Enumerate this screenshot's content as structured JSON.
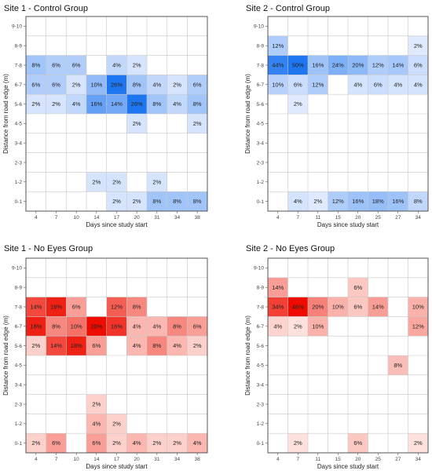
{
  "chart_data": [
    {
      "type": "heatmap",
      "title": "Site 1 - Control Group",
      "xlabel": "Days since study start",
      "ylabel": "Distance from road edge (m)",
      "x": [
        "4",
        "7",
        "10",
        "14",
        "17",
        "20",
        "31",
        "34",
        "38"
      ],
      "y": [
        "0-1",
        "1-2",
        "2-3",
        "3-4",
        "4-5",
        "5-6",
        "6-7",
        "7-8",
        "8-9",
        "9-10"
      ],
      "color_scale": "blue",
      "cells": [
        {
          "x": "4",
          "y": "7-8",
          "value": 8
        },
        {
          "x": "7",
          "y": "7-8",
          "value": 6
        },
        {
          "x": "10",
          "y": "7-8",
          "value": 6
        },
        {
          "x": "17",
          "y": "7-8",
          "value": 4
        },
        {
          "x": "20",
          "y": "7-8",
          "value": 2
        },
        {
          "x": "4",
          "y": "6-7",
          "value": 6
        },
        {
          "x": "7",
          "y": "6-7",
          "value": 6
        },
        {
          "x": "10",
          "y": "6-7",
          "value": 2
        },
        {
          "x": "14",
          "y": "6-7",
          "value": 10
        },
        {
          "x": "17",
          "y": "6-7",
          "value": 26
        },
        {
          "x": "20",
          "y": "6-7",
          "value": 8
        },
        {
          "x": "31",
          "y": "6-7",
          "value": 4
        },
        {
          "x": "34",
          "y": "6-7",
          "value": 2
        },
        {
          "x": "38",
          "y": "6-7",
          "value": 6
        },
        {
          "x": "4",
          "y": "5-6",
          "value": 2
        },
        {
          "x": "7",
          "y": "5-6",
          "value": 2
        },
        {
          "x": "10",
          "y": "5-6",
          "value": 4
        },
        {
          "x": "14",
          "y": "5-6",
          "value": 16
        },
        {
          "x": "17",
          "y": "5-6",
          "value": 14
        },
        {
          "x": "20",
          "y": "5-6",
          "value": 26
        },
        {
          "x": "31",
          "y": "5-6",
          "value": 8
        },
        {
          "x": "34",
          "y": "5-6",
          "value": 4
        },
        {
          "x": "38",
          "y": "5-6",
          "value": 8
        },
        {
          "x": "20",
          "y": "4-5",
          "value": 2
        },
        {
          "x": "38",
          "y": "4-5",
          "value": 2
        },
        {
          "x": "14",
          "y": "1-2",
          "value": 2
        },
        {
          "x": "17",
          "y": "1-2",
          "value": 2
        },
        {
          "x": "31",
          "y": "1-2",
          "value": 2
        },
        {
          "x": "17",
          "y": "0-1",
          "value": 2
        },
        {
          "x": "20",
          "y": "0-1",
          "value": 2
        },
        {
          "x": "31",
          "y": "0-1",
          "value": 8
        },
        {
          "x": "34",
          "y": "0-1",
          "value": 8
        },
        {
          "x": "38",
          "y": "0-1",
          "value": 8
        }
      ]
    },
    {
      "type": "heatmap",
      "title": "Site 2 - Control Group",
      "xlabel": "Days since study start",
      "ylabel": "Distance from road edge (m)",
      "x": [
        "4",
        "7",
        "11",
        "15",
        "20",
        "25",
        "27",
        "34"
      ],
      "y": [
        "0-1",
        "1-2",
        "2-3",
        "3-4",
        "4-5",
        "5-6",
        "6-7",
        "7-8",
        "8-9",
        "9-10"
      ],
      "color_scale": "blue",
      "cells": [
        {
          "x": "4",
          "y": "8-9",
          "value": 12
        },
        {
          "x": "34",
          "y": "8-9",
          "value": 2
        },
        {
          "x": "4",
          "y": "7-8",
          "value": 44
        },
        {
          "x": "7",
          "y": "7-8",
          "value": 50
        },
        {
          "x": "11",
          "y": "7-8",
          "value": 16
        },
        {
          "x": "15",
          "y": "7-8",
          "value": 24
        },
        {
          "x": "20",
          "y": "7-8",
          "value": 20
        },
        {
          "x": "25",
          "y": "7-8",
          "value": 12
        },
        {
          "x": "27",
          "y": "7-8",
          "value": 14
        },
        {
          "x": "34",
          "y": "7-8",
          "value": 6
        },
        {
          "x": "4",
          "y": "6-7",
          "value": 10
        },
        {
          "x": "7",
          "y": "6-7",
          "value": 6
        },
        {
          "x": "11",
          "y": "6-7",
          "value": 12
        },
        {
          "x": "20",
          "y": "6-7",
          "value": 4
        },
        {
          "x": "25",
          "y": "6-7",
          "value": 6
        },
        {
          "x": "27",
          "y": "6-7",
          "value": 4
        },
        {
          "x": "34",
          "y": "6-7",
          "value": 4
        },
        {
          "x": "7",
          "y": "5-6",
          "value": 2
        },
        {
          "x": "7",
          "y": "0-1",
          "value": 4
        },
        {
          "x": "11",
          "y": "0-1",
          "value": 2
        },
        {
          "x": "15",
          "y": "0-1",
          "value": 12
        },
        {
          "x": "20",
          "y": "0-1",
          "value": 16
        },
        {
          "x": "25",
          "y": "0-1",
          "value": 18
        },
        {
          "x": "27",
          "y": "0-1",
          "value": 16
        },
        {
          "x": "34",
          "y": "0-1",
          "value": 8
        }
      ]
    },
    {
      "type": "heatmap",
      "title": "Site 1 - No Eyes Group",
      "xlabel": "Days since study start",
      "ylabel": "Distance from road edge (m)",
      "x": [
        "4",
        "7",
        "10",
        "14",
        "17",
        "20",
        "31",
        "34",
        "38"
      ],
      "y": [
        "0-1",
        "1-2",
        "2-3",
        "3-4",
        "4-5",
        "5-6",
        "6-7",
        "7-8",
        "8-9",
        "9-10"
      ],
      "color_scale": "red",
      "cells": [
        {
          "x": "4",
          "y": "7-8",
          "value": 14
        },
        {
          "x": "7",
          "y": "7-8",
          "value": 18
        },
        {
          "x": "10",
          "y": "7-8",
          "value": 6
        },
        {
          "x": "17",
          "y": "7-8",
          "value": 12
        },
        {
          "x": "20",
          "y": "7-8",
          "value": 8
        },
        {
          "x": "4",
          "y": "6-7",
          "value": 18
        },
        {
          "x": "7",
          "y": "6-7",
          "value": 8
        },
        {
          "x": "10",
          "y": "6-7",
          "value": 10
        },
        {
          "x": "14",
          "y": "6-7",
          "value": 20
        },
        {
          "x": "17",
          "y": "6-7",
          "value": 16
        },
        {
          "x": "20",
          "y": "6-7",
          "value": 4
        },
        {
          "x": "31",
          "y": "6-7",
          "value": 4
        },
        {
          "x": "34",
          "y": "6-7",
          "value": 8
        },
        {
          "x": "38",
          "y": "6-7",
          "value": 6
        },
        {
          "x": "4",
          "y": "5-6",
          "value": 2
        },
        {
          "x": "7",
          "y": "5-6",
          "value": 14
        },
        {
          "x": "10",
          "y": "5-6",
          "value": 18
        },
        {
          "x": "14",
          "y": "5-6",
          "value": 6
        },
        {
          "x": "20",
          "y": "5-6",
          "value": 4
        },
        {
          "x": "31",
          "y": "5-6",
          "value": 8
        },
        {
          "x": "34",
          "y": "5-6",
          "value": 4
        },
        {
          "x": "38",
          "y": "5-6",
          "value": 2
        },
        {
          "x": "14",
          "y": "2-3",
          "value": 2
        },
        {
          "x": "14",
          "y": "1-2",
          "value": 4
        },
        {
          "x": "17",
          "y": "1-2",
          "value": 2
        },
        {
          "x": "4",
          "y": "0-1",
          "value": 2
        },
        {
          "x": "7",
          "y": "0-1",
          "value": 6
        },
        {
          "x": "14",
          "y": "0-1",
          "value": 6
        },
        {
          "x": "17",
          "y": "0-1",
          "value": 2
        },
        {
          "x": "20",
          "y": "0-1",
          "value": 4
        },
        {
          "x": "31",
          "y": "0-1",
          "value": 2
        },
        {
          "x": "34",
          "y": "0-1",
          "value": 2
        },
        {
          "x": "38",
          "y": "0-1",
          "value": 4
        }
      ]
    },
    {
      "type": "heatmap",
      "title": "Site 2 - No Eyes Group",
      "xlabel": "Days since study start",
      "ylabel": "Distance from road edge (m)",
      "x": [
        "4",
        "7",
        "11",
        "15",
        "20",
        "25",
        "27",
        "34"
      ],
      "y": [
        "0-1",
        "1-2",
        "2-3",
        "3-4",
        "4-5",
        "5-6",
        "6-7",
        "7-8",
        "8-9",
        "9-10"
      ],
      "color_scale": "red",
      "cells": [
        {
          "x": "4",
          "y": "8-9",
          "value": 14
        },
        {
          "x": "20",
          "y": "8-9",
          "value": 6
        },
        {
          "x": "4",
          "y": "7-8",
          "value": 34
        },
        {
          "x": "7",
          "y": "7-8",
          "value": 46
        },
        {
          "x": "11",
          "y": "7-8",
          "value": 20
        },
        {
          "x": "15",
          "y": "7-8",
          "value": 10
        },
        {
          "x": "20",
          "y": "7-8",
          "value": 6
        },
        {
          "x": "25",
          "y": "7-8",
          "value": 14
        },
        {
          "x": "34",
          "y": "7-8",
          "value": 10
        },
        {
          "x": "4",
          "y": "6-7",
          "value": 4
        },
        {
          "x": "7",
          "y": "6-7",
          "value": 2
        },
        {
          "x": "11",
          "y": "6-7",
          "value": 10
        },
        {
          "x": "34",
          "y": "6-7",
          "value": 12
        },
        {
          "x": "27",
          "y": "4-5",
          "value": 8
        },
        {
          "x": "7",
          "y": "0-1",
          "value": 2
        },
        {
          "x": "20",
          "y": "0-1",
          "value": 6
        },
        {
          "x": "34",
          "y": "0-1",
          "value": 2
        }
      ]
    }
  ],
  "colors": {
    "blue_low": "#edf2ff",
    "blue_high": "#1e76f0",
    "red_low": "#fff1ec",
    "red_high": "#ee0c00",
    "grid": "#c8c8c8",
    "frame": "#333333"
  }
}
